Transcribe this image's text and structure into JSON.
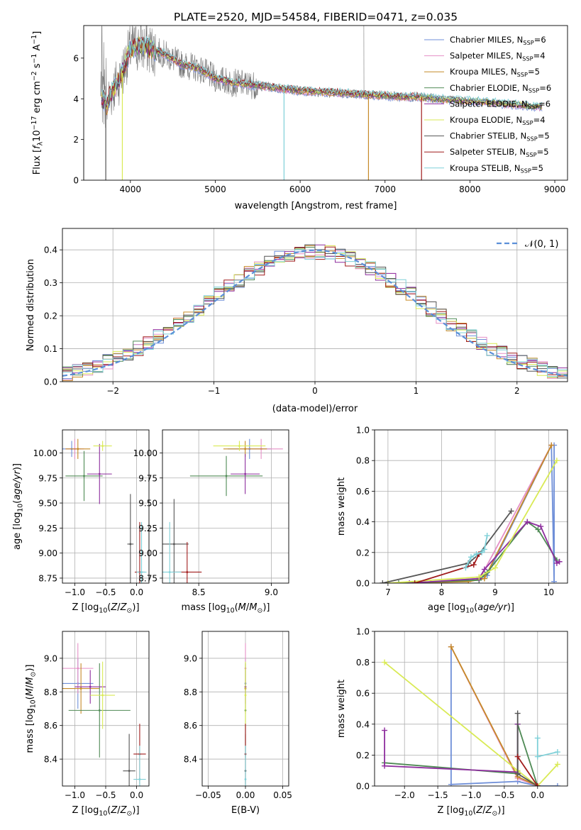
{
  "figure_title": "PLATE=2520, MJD=54584, FIBERID=0471, z=0.035",
  "series_colors": [
    "#6f8fd8",
    "#e58fc6",
    "#c68a28",
    "#4f8a55",
    "#8e2e9e",
    "#d9ea55",
    "#555555",
    "#a01c1c",
    "#7fd0d8"
  ],
  "chart_data": [
    {
      "id": "spectrum",
      "type": "line",
      "title": "PLATE=2520, MJD=54584, FIBERID=0471, z=0.035",
      "xlabel": "wavelength [Angstrom, rest frame]",
      "ylabel": "Flux [fλ10⁻¹⁷ erg cm⁻² s⁻¹ A⁻¹]",
      "xlim": [
        3450,
        9150
      ],
      "ylim": [
        0,
        7.6
      ],
      "xticks": [
        4000,
        5000,
        6000,
        7000,
        8000,
        9000
      ],
      "yticks": [
        0,
        2,
        4,
        6
      ],
      "grid": false,
      "legend_position": "top-right",
      "legend": [
        "Chabrier MILES, N_SSP=6",
        "Salpeter MILES, N_SSP=4",
        "Kroupa MILES, N_SSP=5",
        "Chabrier ELODIE, N_SSP=6",
        "Salpeter ELODIE, N_SSP=6",
        "Kroupa ELODIE, N_SSP=4",
        "Chabrier STELIB, N_SSP=5",
        "Salpeter STELIB, N_SSP=5",
        "Kroupa STELIB, N_SSP=5"
      ],
      "legend_labels": [
        "Chabrier MILES, N",
        "Salpeter MILES, N",
        "Kroupa MILES, N",
        "Chabrier ELODIE, N",
        "Salpeter ELODIE, N",
        "Kroupa ELODIE, N",
        "Chabrier STELIB, N",
        "Salpeter STELIB, N",
        "Kroupa STELIB, N"
      ],
      "legend_sub": "SSP",
      "legend_counts": [
        "=6",
        "=4",
        "=5",
        "=6",
        "=6",
        "=4",
        "=5",
        "=5",
        "=5"
      ],
      "continuum": [
        [
          3650,
          4.1
        ],
        [
          3720,
          3.7
        ],
        [
          3800,
          4.5
        ],
        [
          3900,
          5.2
        ],
        [
          3950,
          5.9
        ],
        [
          4000,
          6.4
        ],
        [
          4100,
          6.6
        ],
        [
          4200,
          6.5
        ],
        [
          4400,
          6.2
        ],
        [
          4600,
          5.7
        ],
        [
          4800,
          5.5
        ],
        [
          5000,
          5.0
        ],
        [
          5200,
          4.8
        ],
        [
          5400,
          4.7
        ],
        [
          5600,
          4.6
        ],
        [
          5800,
          4.5
        ],
        [
          6000,
          4.4
        ],
        [
          6200,
          4.35
        ],
        [
          6400,
          4.3
        ],
        [
          6600,
          4.25
        ],
        [
          6800,
          4.2
        ],
        [
          7000,
          4.15
        ],
        [
          7200,
          4.1
        ],
        [
          7400,
          4.1
        ],
        [
          7600,
          4.0
        ],
        [
          7800,
          3.95
        ],
        [
          8000,
          3.9
        ],
        [
          8200,
          3.85
        ],
        [
          8400,
          3.75
        ],
        [
          8600,
          3.7
        ],
        [
          8850,
          3.6
        ]
      ]
    },
    {
      "id": "residuals",
      "type": "histogram",
      "xlabel": "(data-model)/error",
      "ylabel": "Normed distribution",
      "xlim": [
        -2.5,
        2.5
      ],
      "ylim": [
        0,
        0.465
      ],
      "xticks": [
        -2,
        -1,
        0,
        1,
        2
      ],
      "yticks": [
        0.0,
        0.1,
        0.2,
        0.3,
        0.4
      ],
      "grid": true,
      "legend_position": "top-right",
      "legend": [
        "𝒩(0, 1)"
      ],
      "bin_width": 0.1,
      "bins_start": -2.5,
      "reference_curve": "normal(0,1)"
    },
    {
      "id": "age-vs-Z",
      "type": "scatter",
      "xlabel": "Z [log10(Z/Z⊙)]",
      "ylabel": "age  [log10(age/yr)]",
      "xlim": [
        -1.2,
        0.2
      ],
      "ylim": [
        8.7,
        10.23
      ],
      "xticks": [
        -1,
        -0.5,
        0
      ],
      "yticks": [
        8.75,
        9.0,
        9.25,
        9.5,
        9.75,
        10.0
      ],
      "grid": true,
      "points": [
        {
          "x": -1.05,
          "y": 10.04,
          "xerr": 0.15,
          "yerr": 0.08
        },
        {
          "x": -1.0,
          "y": 10.04,
          "xerr": 0.15,
          "yerr": 0.1
        },
        {
          "x": -0.95,
          "y": 10.04,
          "xerr": 0.2,
          "yerr": 0.1
        },
        {
          "x": -0.85,
          "y": 9.77,
          "xerr": 0.3,
          "yerr": 0.25
        },
        {
          "x": -0.6,
          "y": 9.79,
          "xerr": 0.2,
          "yerr": 0.3
        },
        {
          "x": -0.55,
          "y": 10.07,
          "xerr": 0.15,
          "yerr": 0.05
        },
        {
          "x": -0.1,
          "y": 9.09,
          "xerr": 0.05,
          "yerr": 0.5
        },
        {
          "x": 0.05,
          "y": 8.81,
          "xerr": 0.08,
          "yerr": 0.5
        },
        {
          "x": 0.08,
          "y": 8.81,
          "xerr": 0.08,
          "yerr": 0.5
        }
      ]
    },
    {
      "id": "age-vs-mass",
      "type": "scatter",
      "xlabel": "mass [log10(M/M⊙)]",
      "ylabel": "",
      "xlim": [
        8.25,
        9.12
      ],
      "ylim": [
        8.7,
        10.23
      ],
      "xticks": [
        8.5,
        9.0
      ],
      "yticks": [
        8.75,
        9.0,
        9.25,
        9.5,
        9.75,
        10.0
      ],
      "grid": true,
      "points": [
        {
          "x": 8.85,
          "y": 10.04,
          "xerr": 0.15,
          "yerr": 0.1
        },
        {
          "x": 8.93,
          "y": 10.04,
          "xerr": 0.15,
          "yerr": 0.1
        },
        {
          "x": 8.82,
          "y": 10.04,
          "xerr": 0.15,
          "yerr": 0.08
        },
        {
          "x": 8.69,
          "y": 9.77,
          "xerr": 0.25,
          "yerr": 0.2
        },
        {
          "x": 8.82,
          "y": 9.79,
          "xerr": 0.1,
          "yerr": 0.2
        },
        {
          "x": 8.78,
          "y": 10.07,
          "xerr": 0.18,
          "yerr": 0.05
        },
        {
          "x": 8.33,
          "y": 9.09,
          "xerr": 0.1,
          "yerr": 0.45
        },
        {
          "x": 8.42,
          "y": 8.81,
          "xerr": 0.1,
          "yerr": 0.3
        },
        {
          "x": 8.3,
          "y": 8.81,
          "xerr": 0.08,
          "yerr": 0.5
        }
      ]
    },
    {
      "id": "weight-vs-age",
      "type": "line",
      "xlabel": "age  [log10(age/yr)]",
      "ylabel": "mass weight",
      "xlim": [
        6.75,
        10.35
      ],
      "ylim": [
        0,
        1.0
      ],
      "xticks": [
        7,
        8,
        9,
        10
      ],
      "yticks": [
        0.0,
        0.2,
        0.4,
        0.6,
        0.8,
        1.0
      ],
      "grid": true,
      "series": [
        {
          "name": "Chabrier MILES, N_SSP=6",
          "x": [
            8.7,
            8.85,
            10.05,
            10.1,
            10.1
          ],
          "y": [
            0.03,
            0.05,
            0.9,
            0.01,
            0.9
          ]
        },
        {
          "name": "Salpeter MILES, N_SSP=4",
          "x": [
            7.8,
            8.7,
            10.05
          ],
          "y": [
            0.0,
            0.02,
            0.9
          ]
        },
        {
          "name": "Kroupa MILES, N_SSP=5",
          "x": [
            7.0,
            8.5,
            8.8,
            10.05
          ],
          "y": [
            0.0,
            0.01,
            0.03,
            0.9
          ]
        },
        {
          "name": "Chabrier ELODIE, N_SSP=6",
          "x": [
            7.2,
            8.7,
            8.85,
            9.6,
            9.8,
            10.15
          ],
          "y": [
            0.0,
            0.02,
            0.07,
            0.4,
            0.35,
            0.15
          ]
        },
        {
          "name": "Salpeter ELODIE, N_SSP=6",
          "x": [
            7.4,
            8.7,
            8.8,
            9.6,
            9.85,
            10.15,
            10.2
          ],
          "y": [
            0.0,
            0.03,
            0.09,
            0.4,
            0.37,
            0.13,
            0.14
          ]
        },
        {
          "name": "Kroupa ELODIE, N_SSP=4",
          "x": [
            7.0,
            8.7,
            9.0,
            10.15
          ],
          "y": [
            0.0,
            0.04,
            0.1,
            0.8
          ]
        },
        {
          "name": "Chabrier STELIB, N_SSP=5",
          "x": [
            6.9,
            8.5,
            8.7,
            9.3
          ],
          "y": [
            0.0,
            0.13,
            0.19,
            0.47
          ]
        },
        {
          "name": "Salpeter STELIB, N_SSP=5",
          "x": [
            7.5,
            8.6,
            8.7
          ],
          "y": [
            0.0,
            0.12,
            0.19
          ]
        },
        {
          "name": "Kroupa STELIB, N_SSP=5",
          "x": [
            8.45,
            8.55,
            8.65,
            8.75,
            8.8,
            8.85
          ],
          "y": [
            0.1,
            0.17,
            0.19,
            0.2,
            0.22,
            0.31
          ]
        }
      ]
    },
    {
      "id": "mass-vs-Z",
      "type": "scatter",
      "xlabel": "Z [log10(Z/Z⊙)]",
      "ylabel": "mass [log10(M/M⊙)]",
      "xlim": [
        -1.2,
        0.2
      ],
      "ylim": [
        8.24,
        9.16
      ],
      "xticks": [
        -1,
        -0.5,
        0
      ],
      "yticks": [
        8.4,
        8.6,
        8.8,
        9.0
      ],
      "grid": true,
      "points": [
        {
          "x": -0.95,
          "y": 8.85,
          "xerr": 0.25,
          "yerr": 0.15
        },
        {
          "x": -0.95,
          "y": 8.94,
          "xerr": 0.25,
          "yerr": 0.15
        },
        {
          "x": -0.9,
          "y": 8.82,
          "xerr": 0.3,
          "yerr": 0.15
        },
        {
          "x": -0.6,
          "y": 8.69,
          "xerr": 0.5,
          "yerr": 0.28
        },
        {
          "x": -0.75,
          "y": 8.83,
          "xerr": 0.25,
          "yerr": 0.1
        },
        {
          "x": -0.55,
          "y": 8.78,
          "xerr": 0.2,
          "yerr": 0.2
        },
        {
          "x": -0.12,
          "y": 8.33,
          "xerr": 0.1,
          "yerr": 0.22
        },
        {
          "x": 0.05,
          "y": 8.43,
          "xerr": 0.1,
          "yerr": 0.18
        },
        {
          "x": 0.05,
          "y": 8.28,
          "xerr": 0.1,
          "yerr": 0.2
        }
      ]
    },
    {
      "id": "mass-vs-EBV",
      "type": "scatter",
      "xlabel": "E(B-V)",
      "ylabel": "",
      "xlim": [
        -0.058,
        0.058
      ],
      "ylim": [
        8.24,
        9.16
      ],
      "xticks": [
        -0.05,
        0.0,
        0.05
      ],
      "yticks": [
        8.4,
        8.6,
        8.8,
        9.0
      ],
      "grid": true,
      "points": [
        {
          "x": 0.0,
          "y": 8.85,
          "xerr": 0,
          "yerr": 0.15
        },
        {
          "x": 0.0,
          "y": 8.94,
          "xerr": 0,
          "yerr": 0.15
        },
        {
          "x": 0.0,
          "y": 8.82,
          "xerr": 0,
          "yerr": 0.15
        },
        {
          "x": 0.0,
          "y": 8.69,
          "xerr": 0,
          "yerr": 0.28
        },
        {
          "x": 0.0,
          "y": 8.83,
          "xerr": 0,
          "yerr": 0.1
        },
        {
          "x": 0.0,
          "y": 8.78,
          "xerr": 0,
          "yerr": 0.2
        },
        {
          "x": 0.0,
          "y": 8.33,
          "xerr": 0,
          "yerr": 0.22
        },
        {
          "x": 0.0,
          "y": 8.43,
          "xerr": 0,
          "yerr": 0.18
        },
        {
          "x": 0.0,
          "y": 8.28,
          "xerr": 0,
          "yerr": 0.2
        }
      ]
    },
    {
      "id": "weight-vs-Z",
      "type": "line",
      "xlabel": "Z [log10(Z/Z⊙)]",
      "ylabel": "mass weight",
      "xlim": [
        -2.45,
        0.45
      ],
      "ylim": [
        0,
        1.0
      ],
      "xticks": [
        -2.0,
        -1.5,
        -1.0,
        -0.5,
        0.0
      ],
      "yticks": [
        0.0,
        0.2,
        0.4,
        0.6,
        0.8,
        1.0
      ],
      "grid": true,
      "series": [
        {
          "name": "Chabrier MILES, N_SSP=6",
          "x": [
            -1.3,
            -1.3,
            -0.3,
            0.0,
            0.3
          ],
          "y": [
            0.9,
            0.01,
            0.03,
            0.0,
            0.0
          ]
        },
        {
          "name": "Salpeter MILES, N_SSP=4",
          "x": [
            -1.3,
            -0.3,
            0.0
          ],
          "y": [
            0.9,
            0.05,
            0.0
          ]
        },
        {
          "name": "Kroupa MILES, N_SSP=5",
          "x": [
            -1.3,
            -0.3,
            0.0
          ],
          "y": [
            0.9,
            0.06,
            0.0
          ]
        },
        {
          "name": "Chabrier ELODIE, N_SSP=6",
          "x": [
            -2.3,
            -0.3,
            -0.3,
            0.0
          ],
          "y": [
            0.15,
            0.08,
            0.4,
            0.0
          ]
        },
        {
          "name": "Salpeter ELODIE, N_SSP=6",
          "x": [
            -2.3,
            -2.3,
            -0.3,
            -0.3
          ],
          "y": [
            0.36,
            0.13,
            0.09,
            0.4
          ]
        },
        {
          "name": "Kroupa ELODIE, N_SSP=4",
          "x": [
            -2.3,
            -0.3,
            0.0,
            0.3
          ],
          "y": [
            0.8,
            0.1,
            0.0,
            0.14
          ]
        },
        {
          "name": "Chabrier STELIB, N_SSP=5",
          "x": [
            -0.3,
            -0.3,
            0.0
          ],
          "y": [
            0.47,
            0.08,
            0.0
          ]
        },
        {
          "name": "Salpeter STELIB, N_SSP=5",
          "x": [
            -0.3,
            0.0
          ],
          "y": [
            0.19,
            0.0
          ]
        },
        {
          "name": "Kroupa STELIB, N_SSP=5",
          "x": [
            0.0,
            0.0,
            0.3
          ],
          "y": [
            0.31,
            0.19,
            0.22
          ]
        }
      ]
    }
  ]
}
